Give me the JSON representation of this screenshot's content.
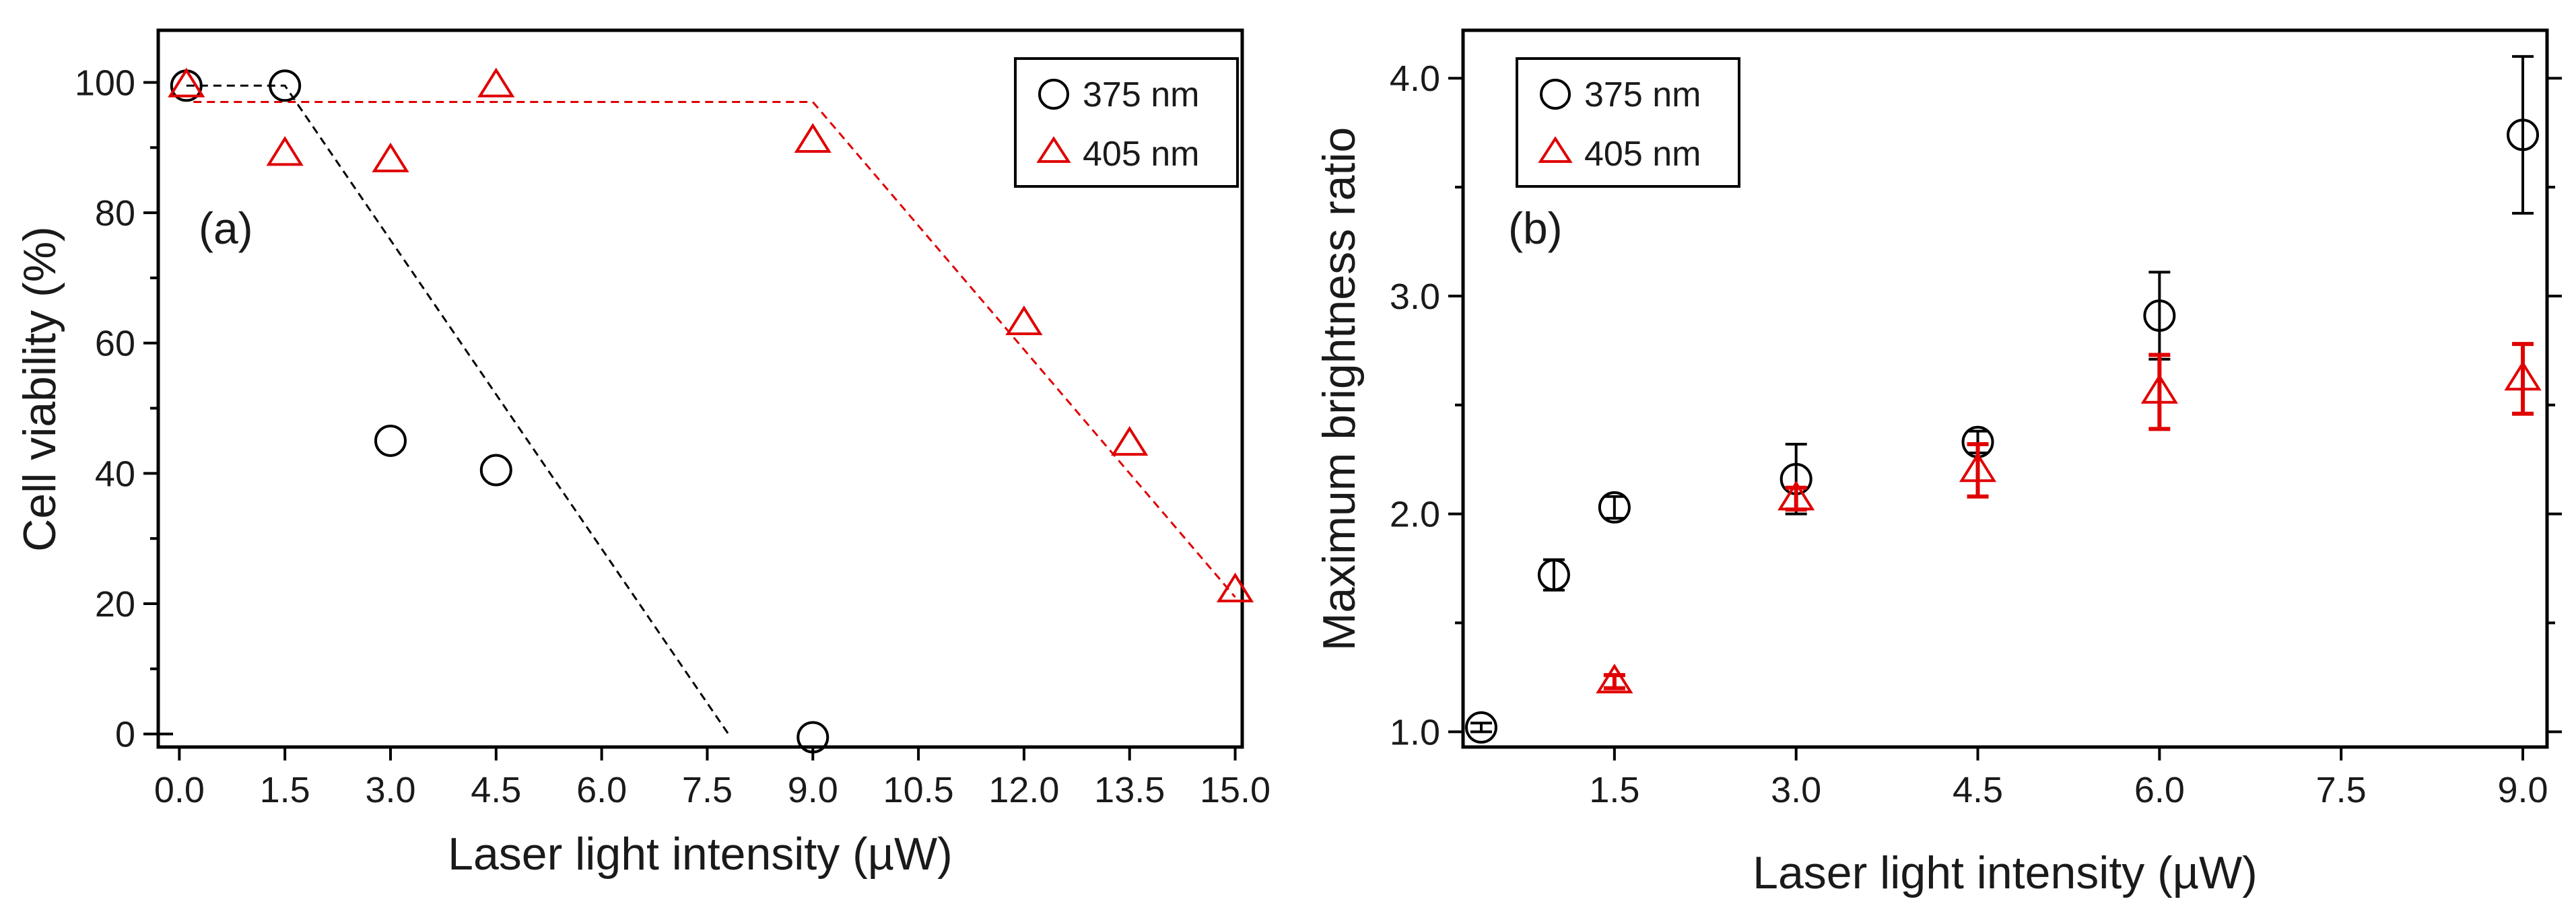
{
  "colors": {
    "series_375": "#000000",
    "series_405": "#e00000"
  },
  "chart_data": [
    {
      "type": "scatter",
      "panel": "(a)",
      "xlabel": "Laser light intensity (µW)",
      "ylabel": "Cell viability (%)",
      "xlim": [
        -0.3,
        15.1
      ],
      "ylim": [
        -2,
        108
      ],
      "xticks": [
        0.0,
        1.5,
        3.0,
        4.5,
        6.0,
        7.5,
        9.0,
        10.5,
        12.0,
        13.5,
        15.0
      ],
      "xtick_labels": [
        "0.0",
        "1.5",
        "3.0",
        "4.5",
        "6.0",
        "7.5",
        "9.0",
        "10.5",
        "12.0",
        "13.5",
        "15.0"
      ],
      "yticks": [
        0,
        20,
        40,
        60,
        80,
        100
      ],
      "ytick_labels": [
        "0",
        "20",
        "40",
        "60",
        "80",
        "100"
      ],
      "legend": {
        "position": "top-right",
        "entries": [
          "375 nm",
          "405 nm"
        ]
      },
      "series": [
        {
          "name": "375 nm",
          "marker": "circle",
          "color": "#000000",
          "x": [
            0.1,
            1.5,
            3.0,
            4.5,
            9.0
          ],
          "y": [
            99.5,
            99.5,
            45,
            40.5,
            -0.5
          ]
        },
        {
          "name": "405 nm",
          "marker": "triangle",
          "color": "#e00000",
          "x": [
            0.1,
            1.5,
            3.0,
            4.5,
            9.0,
            12.0,
            13.5,
            15.0
          ],
          "y": [
            99.5,
            89,
            88,
            99.5,
            91,
            63,
            44.5,
            22
          ]
        }
      ],
      "fit_lines": [
        {
          "series": "375 nm",
          "color": "#000000",
          "points": [
            [
              0.1,
              99.5
            ],
            [
              1.5,
              99.5
            ],
            [
              7.8,
              0
            ]
          ]
        },
        {
          "series": "405 nm",
          "color": "#e00000",
          "points": [
            [
              0.2,
              97
            ],
            [
              9.0,
              97
            ],
            [
              15.0,
              21
            ]
          ]
        }
      ]
    },
    {
      "type": "scatter",
      "panel": "(b)",
      "xlabel": "Laser light intensity (µW)",
      "ylabel": "Maximum brightness ratio",
      "xlim": [
        0.25,
        9.2
      ],
      "ylim": [
        0.93,
        4.22
      ],
      "xticks": [
        1.5,
        3.0,
        4.5,
        6.0,
        7.5,
        9.0
      ],
      "xtick_labels": [
        "1.5",
        "3.0",
        "4.5",
        "6.0",
        "7.5",
        "9.0"
      ],
      "yticks": [
        1.0,
        2.0,
        3.0,
        4.0
      ],
      "ytick_labels": [
        "1.0",
        "2.0",
        "3.0",
        "4.0"
      ],
      "legend": {
        "position": "top-left",
        "entries": [
          "375 nm",
          "405 nm"
        ]
      },
      "series": [
        {
          "name": "375 nm",
          "marker": "circle",
          "color": "#000000",
          "x": [
            0.4,
            1.0,
            1.5,
            3.0,
            4.5,
            6.0,
            9.0
          ],
          "y": [
            1.02,
            1.72,
            2.03,
            2.16,
            2.33,
            2.91,
            3.74
          ],
          "err": [
            0.02,
            0.07,
            0.05,
            0.16,
            0.05,
            0.2,
            0.36
          ]
        },
        {
          "name": "405 nm",
          "marker": "triangle",
          "color": "#e00000",
          "x": [
            1.5,
            3.0,
            4.5,
            6.0,
            9.0
          ],
          "y": [
            1.23,
            2.07,
            2.2,
            2.56,
            2.62
          ],
          "err": [
            0.03,
            0.05,
            0.12,
            0.17,
            0.16
          ]
        }
      ]
    }
  ]
}
